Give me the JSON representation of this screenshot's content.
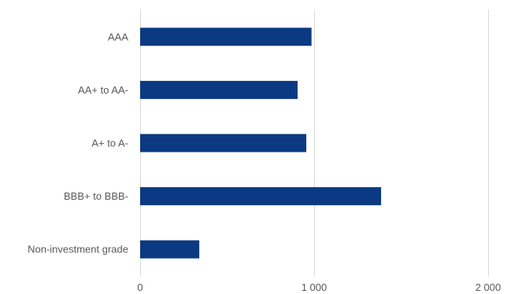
{
  "chart_data": {
    "type": "bar",
    "orientation": "horizontal",
    "categories": [
      "AAA",
      "AA+ to AA-",
      "A+ to A-",
      "BBB+ to BBB-",
      "Non-investment grade"
    ],
    "values": [
      985,
      905,
      955,
      1385,
      340
    ],
    "xlim": [
      0,
      2000
    ],
    "ticks": [
      0,
      1000,
      2000
    ],
    "tick_labels": [
      "0",
      "1 000",
      "2 000"
    ],
    "grid": true,
    "bar_color": "#0b3a82",
    "title": "",
    "xlabel": "",
    "ylabel": ""
  }
}
